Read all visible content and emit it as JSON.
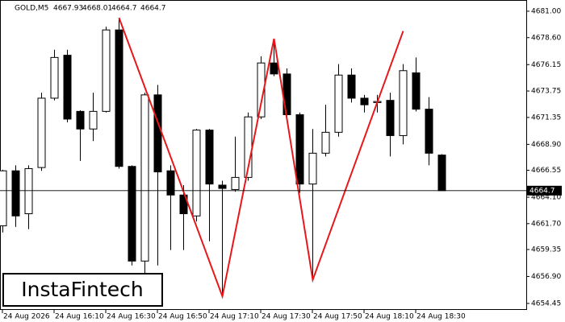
{
  "chart_data": {
    "type": "candlestick",
    "title": "GOLD,M5",
    "watermark": "InstaFintech",
    "categories": [
      "24 Aug 2026",
      null,
      null,
      null,
      "24 Aug 16:10",
      null,
      null,
      null,
      "24 Aug 16:30",
      null,
      null,
      null,
      "24 Aug 16:50",
      null,
      null,
      null,
      "24 Aug 17:10",
      null,
      null,
      null,
      "24 Aug 17:30",
      null,
      null,
      null,
      "24 Aug 17:50",
      null,
      null,
      null,
      "24 Aug 18:10",
      null,
      null,
      null,
      "24 Aug 18:30",
      null,
      null
    ],
    "open": [
      4661.5,
      4666.5,
      4662.6,
      4666.8,
      4673.1,
      4677.0,
      4671.9,
      4670.3,
      4671.9,
      4679.3,
      4666.9,
      4658.3,
      4673.4,
      4666.5,
      4664.3,
      4662.4,
      4670.2,
      4665.2,
      4664.8,
      4665.9,
      4671.4,
      4676.3,
      4675.3,
      4671.6,
      4665.3,
      4668.1,
      4670.0,
      4675.2,
      4673.1,
      4672.7,
      4672.9,
      4669.7,
      4675.4,
      4672.1,
      4667.93
    ],
    "high": [
      4666.6,
      4667.0,
      4667.0,
      4673.6,
      4677.5,
      4677.5,
      4672.0,
      4673.6,
      4679.6,
      4680.4,
      4667.0,
      4673.6,
      4674.3,
      4667.0,
      4665.2,
      4670.3,
      4670.3,
      4665.6,
      4669.6,
      4671.8,
      4676.9,
      4678.5,
      4675.8,
      4671.8,
      4670.3,
      4672.5,
      4676.2,
      4675.8,
      4673.4,
      4673.4,
      4673.6,
      4676.2,
      4676.8,
      4673.2,
      4668.01
    ],
    "low": [
      4660.9,
      4661.4,
      4661.2,
      4666.5,
      4672.9,
      4670.9,
      4667.4,
      4669.2,
      4671.8,
      4666.7,
      4657.9,
      4657.2,
      4657.9,
      4659.3,
      4659.3,
      4661.9,
      4660.1,
      4655.1,
      4664.6,
      4665.6,
      4671.2,
      4675.1,
      4671.1,
      4664.5,
      4656.6,
      4667.8,
      4669.6,
      4672.7,
      4671.8,
      4671.8,
      4667.8,
      4668.9,
      4671.9,
      4667.0,
      4664.7
    ],
    "close": [
      4666.5,
      4662.4,
      4666.7,
      4673.1,
      4676.8,
      4671.2,
      4670.3,
      4671.9,
      4679.3,
      4666.9,
      4658.3,
      4673.4,
      4666.4,
      4664.3,
      4662.6,
      4670.2,
      4665.3,
      4664.9,
      4665.9,
      4671.4,
      4676.3,
      4675.3,
      4671.6,
      4665.3,
      4668.1,
      4670.0,
      4675.2,
      4673.1,
      4672.5,
      4672.8,
      4669.7,
      4675.6,
      4672.1,
      4668.1,
      4664.7
    ],
    "up_color": "#ffffff",
    "down_color": "#000000",
    "pattern": {
      "color": "#e8171b",
      "index": [
        9,
        17,
        21,
        24,
        31
      ],
      "price": [
        4680.4,
        4655.1,
        4678.5,
        4656.6,
        4679.2
      ]
    },
    "ylim": [
      4653.86,
      4682.02
    ],
    "yticks": [
      {
        "value": 4681.0,
        "label": "4681.00"
      },
      {
        "value": 4678.6,
        "label": "4678.60"
      },
      {
        "value": 4676.15,
        "label": "4676.15"
      },
      {
        "value": 4673.75,
        "label": "4673.75"
      },
      {
        "value": 4671.35,
        "label": "4671.35"
      },
      {
        "value": 4668.9,
        "label": "4668.90"
      },
      {
        "value": 4666.55,
        "label": "4666.55"
      },
      {
        "value": 4664.1,
        "label": "4664.10"
      },
      {
        "value": 4661.7,
        "label": "4661.70"
      },
      {
        "value": 4659.35,
        "label": "4659.35"
      },
      {
        "value": 4656.9,
        "label": "4656.90"
      },
      {
        "value": 4654.45,
        "label": "4654.45"
      }
    ]
  }
}
